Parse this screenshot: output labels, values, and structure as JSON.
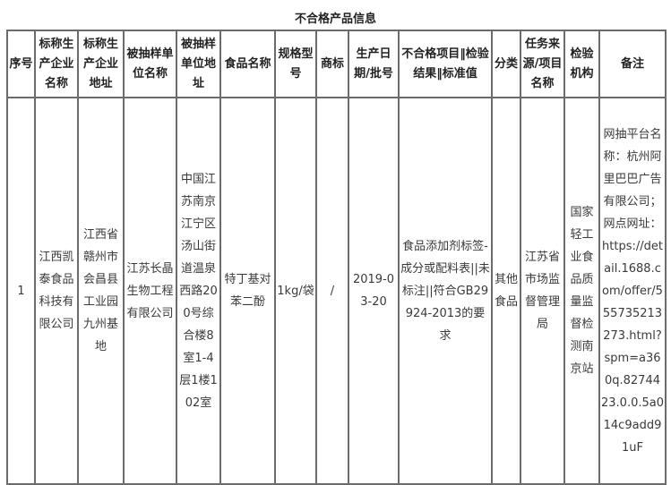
{
  "title": "不合格产品信息",
  "columns": [
    "序号",
    "标称生产企业名称",
    "标称生产企业地址",
    "被抽样单位名称",
    "被抽样单位地址",
    "食品名称",
    "规格型号",
    "商标",
    "生产日期/批号",
    "不合格项目‖检验结果‖标准值",
    "分类",
    "任务来源/项目名称",
    "检验机构",
    "备注"
  ],
  "rows": [
    [
      "1",
      "江西凯泰食品科技有限公司",
      "江西省赣州市会昌县工业园九州基地",
      "江苏长晶生物工程有限公司",
      "中国江苏南京江宁区汤山街道温泉西路200号综合楼8室1-4层1楼102室",
      "特丁基对苯二酚",
      "1kg/袋",
      "/",
      "2019-03-20",
      "食品添加剂标签-成分或配料表||未标注||符合GB29924-2013的要求",
      "其他食品",
      "江苏省市场监督管理局",
      "国家轻工业食品质量监督检测南京站",
      "网抽平台名称：杭州阿里巴巴广告有限公司；网点网址：https://detail.1688.com/offer/555735213273.html?spm=a360q.8274423.0.0.5a014c9add91uF"
    ]
  ]
}
